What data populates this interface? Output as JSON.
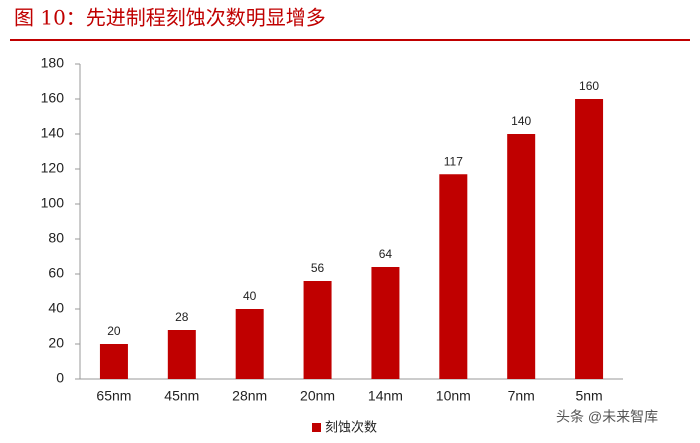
{
  "chart_data": {
    "type": "bar",
    "title": "图 10：先进制程刻蚀次数明显增多",
    "categories": [
      "65nm",
      "45nm",
      "28nm",
      "20nm",
      "14nm",
      "10nm",
      "7nm",
      "5nm"
    ],
    "series": [
      {
        "name": "刻蚀次数",
        "color": "#c00000",
        "values": [
          20,
          28,
          40,
          56,
          64,
          117,
          140,
          160
        ]
      }
    ],
    "ylim": [
      0,
      180
    ],
    "yticks": [
      0,
      20,
      40,
      60,
      80,
      100,
      120,
      140,
      160,
      180
    ],
    "grid": false,
    "legend": "bottom",
    "watermark": "头条 @未来智库"
  }
}
